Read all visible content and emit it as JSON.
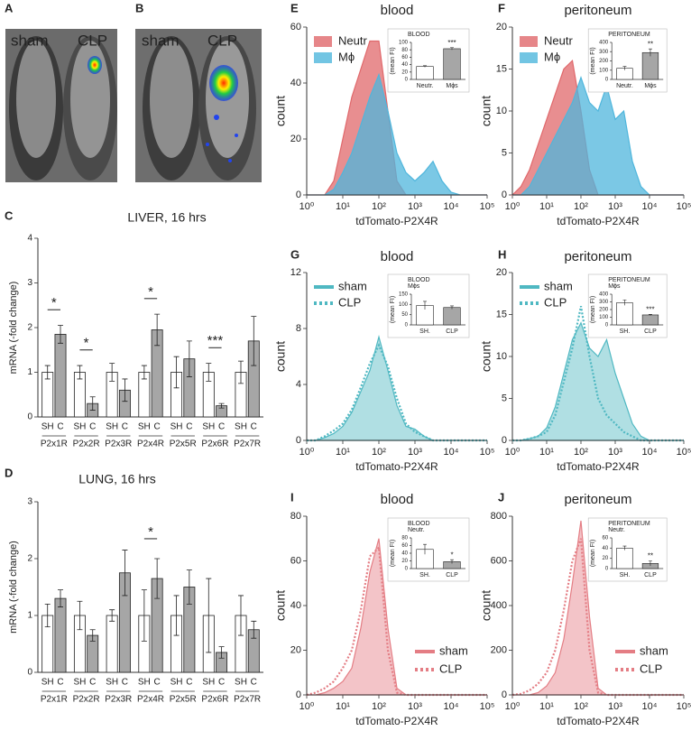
{
  "images": [
    {
      "panel": "A",
      "labels": [
        "sham",
        "CLP"
      ]
    },
    {
      "panel": "B",
      "labels": [
        "sham",
        "CLP"
      ]
    }
  ],
  "chart_data": [
    {
      "panel": "C",
      "type": "bar",
      "title": "LIVER, 16 hrs",
      "ylabel": "mRNA (-fold change)",
      "ylim": [
        0,
        4
      ],
      "yticks": [
        0,
        1,
        2,
        3,
        4
      ],
      "groups": [
        "P2x1R",
        "P2x2R",
        "P2x3R",
        "P2x4R",
        "P2x5R",
        "P2x6R",
        "P2x7R"
      ],
      "series": [
        {
          "name": "SH",
          "color": "#ffffff",
          "values": [
            1,
            1,
            1,
            1,
            1,
            1,
            1
          ],
          "errors": [
            0.15,
            0.15,
            0.2,
            0.15,
            0.35,
            0.2,
            0.25
          ]
        },
        {
          "name": "C",
          "color": "#a6a6a6",
          "values": [
            1.85,
            0.3,
            0.6,
            1.95,
            1.3,
            0.25,
            1.7
          ],
          "errors": [
            0.2,
            0.15,
            0.25,
            0.35,
            0.4,
            0.05,
            0.55
          ]
        }
      ],
      "annotations": [
        {
          "group": "P2x1R",
          "text": "*"
        },
        {
          "group": "P2x2R",
          "text": "*"
        },
        {
          "group": "P2x4R",
          "text": "*"
        },
        {
          "group": "P2x6R",
          "text": "***"
        }
      ]
    },
    {
      "panel": "D",
      "type": "bar",
      "title": "LUNG, 16 hrs",
      "ylabel": "mRNA (-fold change)",
      "ylim": [
        0,
        3
      ],
      "yticks": [
        0,
        1,
        2,
        3
      ],
      "groups": [
        "P2x1R",
        "P2x2R",
        "P2x3R",
        "P2x4R",
        "P2x5R",
        "P2x6R",
        "P2x7R"
      ],
      "series": [
        {
          "name": "SH",
          "color": "#ffffff",
          "values": [
            1,
            1,
            1,
            1,
            1,
            1,
            1
          ],
          "errors": [
            0.2,
            0.25,
            0.1,
            0.45,
            0.35,
            0.65,
            0.35
          ]
        },
        {
          "name": "C",
          "color": "#a6a6a6",
          "values": [
            1.3,
            0.65,
            1.75,
            1.65,
            1.5,
            0.35,
            0.75
          ],
          "errors": [
            0.15,
            0.1,
            0.4,
            0.35,
            0.3,
            0.1,
            0.15
          ]
        }
      ],
      "annotations": [
        {
          "group": "P2x4R",
          "text": "*"
        }
      ]
    },
    {
      "panel": "E",
      "type": "histogram",
      "title": "blood",
      "xlabel": "tdTomato-P2X4R",
      "ylabel": "count",
      "log_x": true,
      "legend": "upper left",
      "xlim": [
        1,
        100000
      ],
      "xticks": [
        {
          "value": 1,
          "label": "10⁰"
        },
        {
          "value": 10,
          "label": "10¹"
        },
        {
          "value": 100,
          "label": "10²"
        },
        {
          "value": 1000,
          "label": "10³"
        },
        {
          "value": 10000,
          "label": "10⁴"
        },
        {
          "value": 100000,
          "label": "10⁵"
        }
      ],
      "ylim": [
        0,
        60
      ],
      "yticks": [
        0,
        20,
        40,
        60
      ],
      "x": [
        1,
        1.78,
        3.16,
        5.62,
        10,
        17.8,
        31.6,
        56.2,
        100,
        178,
        316,
        562,
        1000,
        1780,
        3160,
        5620,
        10000,
        17800,
        31600,
        56200,
        100000
      ],
      "series": [
        {
          "name": "Neutr",
          "color": "#e0686b",
          "style": "solid",
          "fill": true,
          "values": [
            0,
            0,
            0,
            5,
            20,
            35,
            45,
            55,
            55,
            30,
            5,
            0,
            0,
            0,
            0,
            0,
            0,
            0,
            0,
            0,
            0
          ]
        },
        {
          "name": "Mϕ",
          "color": "#4fb6dc",
          "style": "solid",
          "fill": true,
          "values": [
            0,
            0,
            0,
            2,
            8,
            15,
            25,
            35,
            43,
            30,
            15,
            8,
            5,
            8,
            12,
            5,
            1,
            0,
            0,
            0,
            0
          ]
        }
      ],
      "inset": {
        "title": "BLOOD",
        "ylabel": "(mean FI)",
        "ylim": [
          0,
          100
        ],
        "yticks": [
          0,
          20,
          40,
          60,
          80,
          100
        ],
        "categories": [
          "Neutr.",
          "Mϕs"
        ],
        "values": [
          35,
          83
        ],
        "errors": [
          2,
          3
        ],
        "colors": [
          "#ffffff",
          "#a6a6a6"
        ],
        "annotation": {
          "category": "Mϕs",
          "text": "***"
        }
      }
    },
    {
      "panel": "F",
      "type": "histogram",
      "title": "peritoneum",
      "xlabel": "tdTomato-P2X4R",
      "ylabel": "count",
      "log_x": true,
      "legend": "upper left",
      "xlim": [
        1,
        100000
      ],
      "xticks": [
        {
          "value": 1,
          "label": "10⁰"
        },
        {
          "value": 10,
          "label": "10¹"
        },
        {
          "value": 100,
          "label": "10²"
        },
        {
          "value": 1000,
          "label": "10³"
        },
        {
          "value": 10000,
          "label": "10⁴"
        },
        {
          "value": 100000,
          "label": "10⁵"
        }
      ],
      "ylim": [
        0,
        20
      ],
      "yticks": [
        0,
        5,
        10,
        15,
        20
      ],
      "x": [
        1,
        1.78,
        3.16,
        5.62,
        10,
        17.8,
        31.6,
        56.2,
        100,
        178,
        316,
        562,
        1000,
        1780,
        3160,
        5620,
        10000,
        17800,
        31600,
        56200,
        100000
      ],
      "series": [
        {
          "name": "Neutr",
          "color": "#e0686b",
          "style": "solid",
          "fill": true,
          "values": [
            0,
            1,
            3,
            6,
            9,
            12,
            15,
            16,
            10,
            3,
            0,
            0,
            0,
            0,
            0,
            0,
            0,
            0,
            0,
            0,
            0
          ]
        },
        {
          "name": "Mϕ",
          "color": "#4fb6dc",
          "style": "solid",
          "fill": true,
          "values": [
            0,
            0,
            1,
            3,
            5,
            7,
            9,
            11,
            14,
            11,
            10,
            13,
            9,
            10,
            4,
            1,
            0,
            0,
            0,
            0,
            0
          ]
        }
      ],
      "inset": {
        "title": "PERITONEUM",
        "ylabel": "(mean FI)",
        "ylim": [
          0,
          400
        ],
        "yticks": [
          0,
          100,
          200,
          300,
          400
        ],
        "categories": [
          "Neutr.",
          "Mϕs"
        ],
        "values": [
          120,
          290
        ],
        "errors": [
          20,
          40
        ],
        "colors": [
          "#ffffff",
          "#a6a6a6"
        ],
        "annotation": {
          "category": "Mϕs",
          "text": "**"
        }
      }
    },
    {
      "panel": "G",
      "type": "histogram",
      "title": "blood",
      "xlabel": "tdTomato-P2X4R",
      "ylabel": "count",
      "log_x": true,
      "legend": "upper left",
      "xlim": [
        1,
        100000
      ],
      "xticks": [
        {
          "value": 1,
          "label": "10⁰"
        },
        {
          "value": 10,
          "label": "10¹"
        },
        {
          "value": 100,
          "label": "10²"
        },
        {
          "value": 1000,
          "label": "10³"
        },
        {
          "value": 10000,
          "label": "10⁴"
        },
        {
          "value": 100000,
          "label": "10⁵"
        }
      ],
      "ylim": [
        0,
        12
      ],
      "yticks": [
        0,
        4,
        8,
        12
      ],
      "x": [
        1,
        1.78,
        3.16,
        5.62,
        10,
        17.8,
        31.6,
        56.2,
        100,
        178,
        316,
        562,
        1000,
        1780,
        3160,
        5620,
        10000,
        17800,
        31600,
        56200,
        100000
      ],
      "series": [
        {
          "name": "sham",
          "color": "#4fb8c2",
          "style": "solid",
          "fill": true,
          "values": [
            0,
            0,
            0.2,
            0.5,
            1,
            2,
            3.5,
            5,
            7.4,
            5,
            2.5,
            1,
            0.8,
            0.3,
            0,
            0,
            0,
            0,
            0,
            0,
            0
          ]
        },
        {
          "name": "CLP",
          "color": "#4fb8c2",
          "style": "dotted",
          "fill": false,
          "values": [
            0,
            0,
            0.3,
            0.7,
            1.2,
            2.2,
            3.8,
            5.5,
            6.8,
            5.3,
            3,
            1.2,
            0.6,
            0.3,
            0,
            0,
            0,
            0,
            0,
            0,
            0
          ]
        }
      ],
      "inset": {
        "title": "BLOOD",
        "subtitle": "Mϕs",
        "ylabel": "(mean FI)",
        "ylim": [
          0,
          150
        ],
        "yticks": [
          0,
          50,
          100,
          150
        ],
        "categories": [
          "SH.",
          "CLP"
        ],
        "values": [
          95,
          85
        ],
        "errors": [
          20,
          8
        ],
        "colors": [
          "#ffffff",
          "#a6a6a6"
        ]
      }
    },
    {
      "panel": "H",
      "type": "histogram",
      "title": "peritoneum",
      "xlabel": "tdTomato-P2X4R",
      "ylabel": "count",
      "log_x": true,
      "legend": "upper left",
      "xlim": [
        1,
        100000
      ],
      "xticks": [
        {
          "value": 1,
          "label": "10⁰"
        },
        {
          "value": 10,
          "label": "10¹"
        },
        {
          "value": 100,
          "label": "10²"
        },
        {
          "value": 1000,
          "label": "10³"
        },
        {
          "value": 10000,
          "label": "10⁴"
        },
        {
          "value": 100000,
          "label": "10⁵"
        }
      ],
      "ylim": [
        0,
        20
      ],
      "yticks": [
        0,
        5,
        10,
        15,
        20
      ],
      "x": [
        1,
        1.78,
        3.16,
        5.62,
        10,
        17.8,
        31.6,
        56.2,
        100,
        178,
        316,
        562,
        1000,
        1780,
        3160,
        5620,
        10000,
        17800,
        31600,
        56200,
        100000
      ],
      "series": [
        {
          "name": "sham",
          "color": "#4fb8c2",
          "style": "solid",
          "fill": true,
          "values": [
            0,
            0,
            0.2,
            0.5,
            1.5,
            4,
            8,
            12,
            14,
            11,
            10,
            12,
            8,
            5,
            2,
            0.5,
            0,
            0,
            0,
            0,
            0
          ]
        },
        {
          "name": "CLP",
          "color": "#4fb8c2",
          "style": "dotted",
          "fill": false,
          "values": [
            0,
            0,
            0.2,
            0.5,
            1,
            3,
            7,
            11,
            16,
            10,
            5,
            3,
            2,
            1,
            0.5,
            0,
            0,
            0,
            0,
            0,
            0
          ]
        }
      ],
      "inset": {
        "title": "PERITONEUM",
        "subtitle": "Mϕs",
        "ylabel": "(mean FI)",
        "ylim": [
          0,
          400
        ],
        "yticks": [
          0,
          100,
          200,
          300,
          400
        ],
        "categories": [
          "SH.",
          "CLP"
        ],
        "values": [
          290,
          130
        ],
        "errors": [
          35,
          8
        ],
        "colors": [
          "#ffffff",
          "#a6a6a6"
        ],
        "annotation": {
          "category": "CLP",
          "text": "***"
        }
      }
    },
    {
      "panel": "I",
      "type": "histogram",
      "title": "blood",
      "xlabel": "tdTomato-P2X4R",
      "ylabel": "count",
      "log_x": true,
      "legend": "lower right",
      "xlim": [
        1,
        100000
      ],
      "xticks": [
        {
          "value": 1,
          "label": "10⁰"
        },
        {
          "value": 10,
          "label": "10¹"
        },
        {
          "value": 100,
          "label": "10²"
        },
        {
          "value": 1000,
          "label": "10³"
        },
        {
          "value": 10000,
          "label": "10⁴"
        },
        {
          "value": 100000,
          "label": "10⁵"
        }
      ],
      "ylim": [
        0,
        80
      ],
      "yticks": [
        0,
        20,
        40,
        60,
        80
      ],
      "x": [
        1,
        1.78,
        3.16,
        5.62,
        10,
        17.8,
        31.6,
        56.2,
        100,
        178,
        316,
        562,
        1000,
        1780,
        3160,
        5620,
        10000,
        17800,
        31600,
        56200,
        100000
      ],
      "series": [
        {
          "name": "sham",
          "color": "#e47d84",
          "style": "solid",
          "fill": true,
          "values": [
            0,
            0,
            1,
            3,
            6,
            12,
            30,
            55,
            70,
            30,
            3,
            0,
            0,
            0,
            0,
            0,
            0,
            0,
            0,
            0,
            0
          ]
        },
        {
          "name": "CLP",
          "color": "#e47d84",
          "style": "dotted",
          "fill": false,
          "values": [
            0,
            1,
            3,
            6,
            12,
            20,
            38,
            62,
            66,
            20,
            1,
            0,
            0,
            0,
            0,
            0,
            0,
            0,
            0,
            0,
            0
          ]
        }
      ],
      "inset": {
        "title": "BLOOD",
        "subtitle": "Neutr.",
        "ylabel": "(mean FI)",
        "ylim": [
          0,
          80
        ],
        "yticks": [
          0,
          20,
          40,
          60,
          80
        ],
        "categories": [
          "SH.",
          "CLP"
        ],
        "values": [
          50,
          18
        ],
        "errors": [
          13,
          5
        ],
        "colors": [
          "#ffffff",
          "#a6a6a6"
        ],
        "annotation": {
          "category": "CLP",
          "text": "*"
        }
      }
    },
    {
      "panel": "J",
      "type": "histogram",
      "title": "peritoneum",
      "xlabel": "tdTomato-P2X4R",
      "ylabel": "count",
      "log_x": true,
      "legend": "lower right",
      "xlim": [
        1,
        100000
      ],
      "xticks": [
        {
          "value": 1,
          "label": "10⁰"
        },
        {
          "value": 10,
          "label": "10¹"
        },
        {
          "value": 100,
          "label": "10²"
        },
        {
          "value": 1000,
          "label": "10³"
        },
        {
          "value": 10000,
          "label": "10⁴"
        },
        {
          "value": 100000,
          "label": "10⁵"
        }
      ],
      "ylim": [
        0,
        800
      ],
      "yticks": [
        0,
        200,
        400,
        600,
        800
      ],
      "x": [
        1,
        1.78,
        3.16,
        5.62,
        10,
        17.8,
        31.6,
        56.2,
        100,
        178,
        316,
        562,
        1000,
        1780,
        3160,
        5620,
        10000,
        17800,
        31600,
        56200,
        100000
      ],
      "series": [
        {
          "name": "sham",
          "color": "#e47d84",
          "style": "solid",
          "fill": true,
          "values": [
            0,
            0,
            0,
            10,
            40,
            100,
            250,
            500,
            780,
            350,
            30,
            0,
            0,
            0,
            0,
            0,
            0,
            0,
            0,
            0,
            0
          ]
        },
        {
          "name": "CLP",
          "color": "#e47d84",
          "style": "dotted",
          "fill": false,
          "values": [
            0,
            5,
            20,
            50,
            100,
            200,
            380,
            600,
            700,
            200,
            10,
            0,
            0,
            0,
            0,
            0,
            0,
            0,
            0,
            0,
            0
          ]
        }
      ],
      "inset": {
        "title": "PERITONEUM",
        "subtitle": "Neutr.",
        "ylabel": "(mean FI)",
        "ylim": [
          0,
          60
        ],
        "yticks": [
          0,
          20,
          40,
          60
        ],
        "categories": [
          "SH.",
          "CLP"
        ],
        "values": [
          40,
          10
        ],
        "errors": [
          4,
          5
        ],
        "colors": [
          "#ffffff",
          "#a6a6a6"
        ],
        "annotation": {
          "category": "CLP",
          "text": "**"
        }
      }
    }
  ]
}
